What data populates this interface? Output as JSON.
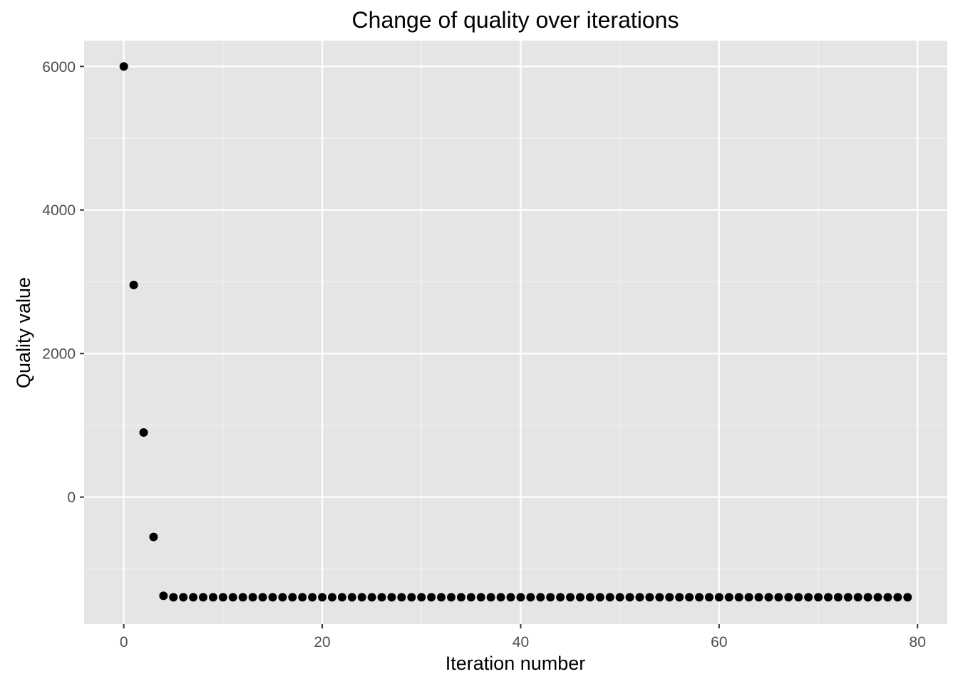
{
  "colors": {
    "panel_background": "#e5e5e5",
    "grid_major": "#ffffff",
    "grid_minor": "#f2f2f2",
    "point": "#000000",
    "tick": "#333333",
    "tick_label": "#4d4d4d"
  },
  "chart_data": {
    "type": "scatter",
    "title": "Change of quality over iterations",
    "xlabel": "Iteration number",
    "ylabel": "Quality value",
    "xlim": [
      -4,
      83
    ],
    "ylim": [
      -1770,
      6360
    ],
    "x_ticks": [
      0,
      20,
      40,
      60,
      80
    ],
    "y_ticks": [
      0,
      2000,
      4000,
      6000
    ],
    "grid": true,
    "legend": "none",
    "points": [
      [
        0,
        6000
      ],
      [
        1,
        2955
      ],
      [
        2,
        900
      ],
      [
        3,
        -555
      ],
      [
        4,
        -1375
      ],
      [
        5,
        -1395
      ],
      [
        6,
        -1395
      ],
      [
        7,
        -1395
      ],
      [
        8,
        -1395
      ],
      [
        9,
        -1395
      ],
      [
        10,
        -1395
      ],
      [
        11,
        -1395
      ],
      [
        12,
        -1395
      ],
      [
        13,
        -1395
      ],
      [
        14,
        -1395
      ],
      [
        15,
        -1395
      ],
      [
        16,
        -1395
      ],
      [
        17,
        -1395
      ],
      [
        18,
        -1395
      ],
      [
        19,
        -1395
      ],
      [
        20,
        -1395
      ],
      [
        21,
        -1395
      ],
      [
        22,
        -1395
      ],
      [
        23,
        -1395
      ],
      [
        24,
        -1395
      ],
      [
        25,
        -1395
      ],
      [
        26,
        -1395
      ],
      [
        27,
        -1395
      ],
      [
        28,
        -1395
      ],
      [
        29,
        -1395
      ],
      [
        30,
        -1395
      ],
      [
        31,
        -1395
      ],
      [
        32,
        -1395
      ],
      [
        33,
        -1395
      ],
      [
        34,
        -1395
      ],
      [
        35,
        -1395
      ],
      [
        36,
        -1395
      ],
      [
        37,
        -1395
      ],
      [
        38,
        -1395
      ],
      [
        39,
        -1395
      ],
      [
        40,
        -1395
      ],
      [
        41,
        -1395
      ],
      [
        42,
        -1395
      ],
      [
        43,
        -1395
      ],
      [
        44,
        -1395
      ],
      [
        45,
        -1395
      ],
      [
        46,
        -1395
      ],
      [
        47,
        -1395
      ],
      [
        48,
        -1395
      ],
      [
        49,
        -1395
      ],
      [
        50,
        -1395
      ],
      [
        51,
        -1395
      ],
      [
        52,
        -1395
      ],
      [
        53,
        -1395
      ],
      [
        54,
        -1395
      ],
      [
        55,
        -1395
      ],
      [
        56,
        -1395
      ],
      [
        57,
        -1395
      ],
      [
        58,
        -1395
      ],
      [
        59,
        -1395
      ],
      [
        60,
        -1395
      ],
      [
        61,
        -1395
      ],
      [
        62,
        -1395
      ],
      [
        63,
        -1395
      ],
      [
        64,
        -1395
      ],
      [
        65,
        -1395
      ],
      [
        66,
        -1395
      ],
      [
        67,
        -1395
      ],
      [
        68,
        -1395
      ],
      [
        69,
        -1395
      ],
      [
        70,
        -1395
      ],
      [
        71,
        -1395
      ],
      [
        72,
        -1395
      ],
      [
        73,
        -1395
      ],
      [
        74,
        -1395
      ],
      [
        75,
        -1395
      ],
      [
        76,
        -1395
      ],
      [
        77,
        -1395
      ],
      [
        78,
        -1395
      ],
      [
        79,
        -1395
      ]
    ]
  }
}
